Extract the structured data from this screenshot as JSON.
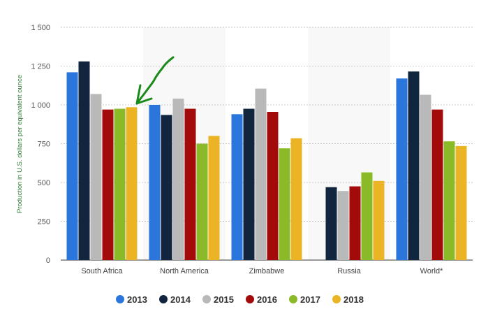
{
  "chart_data": {
    "type": "bar",
    "title": "",
    "xlabel": "",
    "ylabel": "Production in U.S. dollars per equivalent ounce",
    "ylim": [
      0,
      1500
    ],
    "yticks": [
      0,
      250,
      500,
      750,
      1000,
      1250,
      1500
    ],
    "ytick_labels": [
      "0",
      "250",
      "500",
      "750",
      "1 000",
      "1 250",
      "1 500"
    ],
    "grid": true,
    "legend_position": "bottom",
    "categories": [
      "South Africa",
      "North America",
      "Zimbabwe",
      "Russia",
      "World*"
    ],
    "series": [
      {
        "name": "2013",
        "color": "#2a76dd",
        "values": [
          1210,
          1000,
          940,
          null,
          1170
        ]
      },
      {
        "name": "2014",
        "color": "#11263e",
        "values": [
          1280,
          935,
          975,
          470,
          1215
        ]
      },
      {
        "name": "2015",
        "color": "#b9b9b9",
        "values": [
          1070,
          1040,
          1105,
          445,
          1065
        ]
      },
      {
        "name": "2016",
        "color": "#a30b0b",
        "values": [
          970,
          975,
          955,
          475,
          970
        ]
      },
      {
        "name": "2017",
        "color": "#8aba27",
        "values": [
          975,
          750,
          720,
          565,
          765
        ]
      },
      {
        "name": "2018",
        "color": "#ebb425",
        "values": [
          985,
          800,
          785,
          510,
          735
        ]
      }
    ]
  }
}
